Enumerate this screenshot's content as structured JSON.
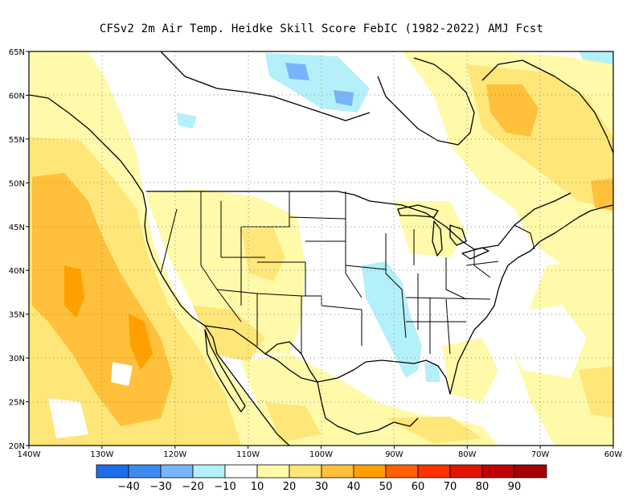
{
  "title": "CFSv2  2m Air Temp. Heidke Skill Score FebIC (1982-2022) AMJ Fcst",
  "axes": {
    "lat_labels": [
      "65N",
      "60N",
      "55N",
      "50N",
      "45N",
      "40N",
      "35N",
      "30N",
      "25N",
      "20N"
    ],
    "lon_labels": [
      "140W",
      "130W",
      "120W",
      "110W",
      "100W",
      "90W",
      "80W",
      "70W",
      "60W"
    ],
    "lat_range": [
      20,
      65
    ],
    "lon_range": [
      -140,
      -60
    ],
    "grid": "dotted"
  },
  "colorbar": {
    "colors": [
      "#1e6eeb",
      "#3c8cf0",
      "#78b4fa",
      "#b4f0fa",
      "#ffffff",
      "#fffaaa",
      "#ffe678",
      "#ffc03c",
      "#ffa000",
      "#ff6000",
      "#ff3200",
      "#e11400",
      "#c00000",
      "#a50000"
    ],
    "labels": [
      "-40",
      "-30",
      "-20",
      "-10",
      "10",
      "20",
      "30",
      "40",
      "50",
      "60",
      "70",
      "80",
      "90"
    ]
  },
  "field_colors": {
    "light_yellow": "#fffaaa",
    "yellow": "#ffe678",
    "orange": "#ffc03c",
    "dark_orange": "#ffa000",
    "light_blue": "#b4f0fa",
    "blue": "#78b4fa"
  }
}
